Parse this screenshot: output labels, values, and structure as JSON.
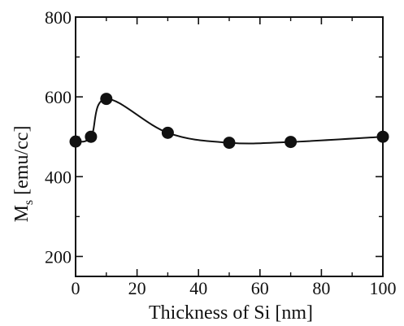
{
  "chart_data": {
    "type": "line",
    "title": "",
    "xlabel": "Thickness of Si [nm]",
    "ylabel": {
      "main": "M",
      "sub": "s",
      "unit": " [emu/cc]"
    },
    "xlim": [
      0,
      100
    ],
    "ylim": [
      150,
      800
    ],
    "xticks": [
      0,
      20,
      40,
      60,
      80,
      100
    ],
    "yticks": [
      200,
      400,
      600,
      800
    ],
    "x_tick_labels": [
      "0",
      "20",
      "40",
      "60",
      "80",
      "100"
    ],
    "y_tick_labels": [
      "200",
      "400",
      "600",
      "800"
    ],
    "grid": false,
    "legend": "none",
    "series": [
      {
        "x": [
          0,
          5,
          10,
          30,
          50,
          70,
          100
        ],
        "y": [
          488,
          500,
          595,
          510,
          485,
          487,
          500
        ],
        "marker": "filled-circle",
        "color": "#111111"
      }
    ]
  }
}
